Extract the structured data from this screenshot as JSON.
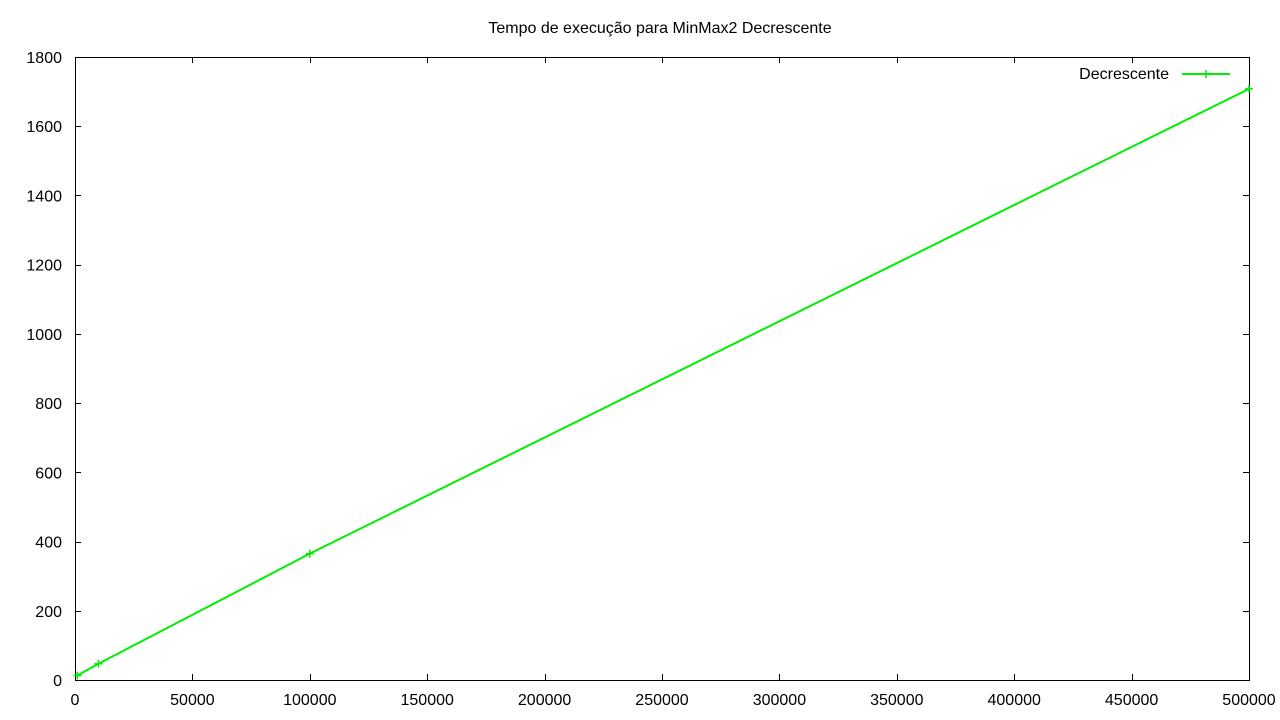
{
  "chart_data": {
    "type": "line",
    "title": "Tempo de execução para MinMax2 Decrescente",
    "xlabel": "",
    "ylabel": "",
    "xlim": [
      0,
      500000
    ],
    "ylim": [
      0,
      1800
    ],
    "x_ticks": [
      0,
      50000,
      100000,
      150000,
      200000,
      250000,
      300000,
      350000,
      400000,
      450000,
      500000
    ],
    "y_ticks": [
      0,
      200,
      400,
      600,
      800,
      1000,
      1200,
      1400,
      1600,
      1800
    ],
    "x_tick_labels": [
      "0",
      "50000",
      "100000",
      "150000",
      "200000",
      "250000",
      "300000",
      "350000",
      "400000",
      "450000",
      "500000"
    ],
    "y_tick_labels": [
      "0",
      "200",
      "400",
      "600",
      "800",
      "1000",
      "1200",
      "1400",
      "1600",
      "1800"
    ],
    "grid": false,
    "legend_position": "top-right",
    "series": [
      {
        "name": "Decrescente",
        "color": "#00ee00",
        "marker": "plus",
        "points": [
          {
            "x": 1000,
            "y": 13
          },
          {
            "x": 10000,
            "y": 47
          },
          {
            "x": 100000,
            "y": 365
          },
          {
            "x": 500000,
            "y": 1708
          }
        ]
      }
    ]
  }
}
